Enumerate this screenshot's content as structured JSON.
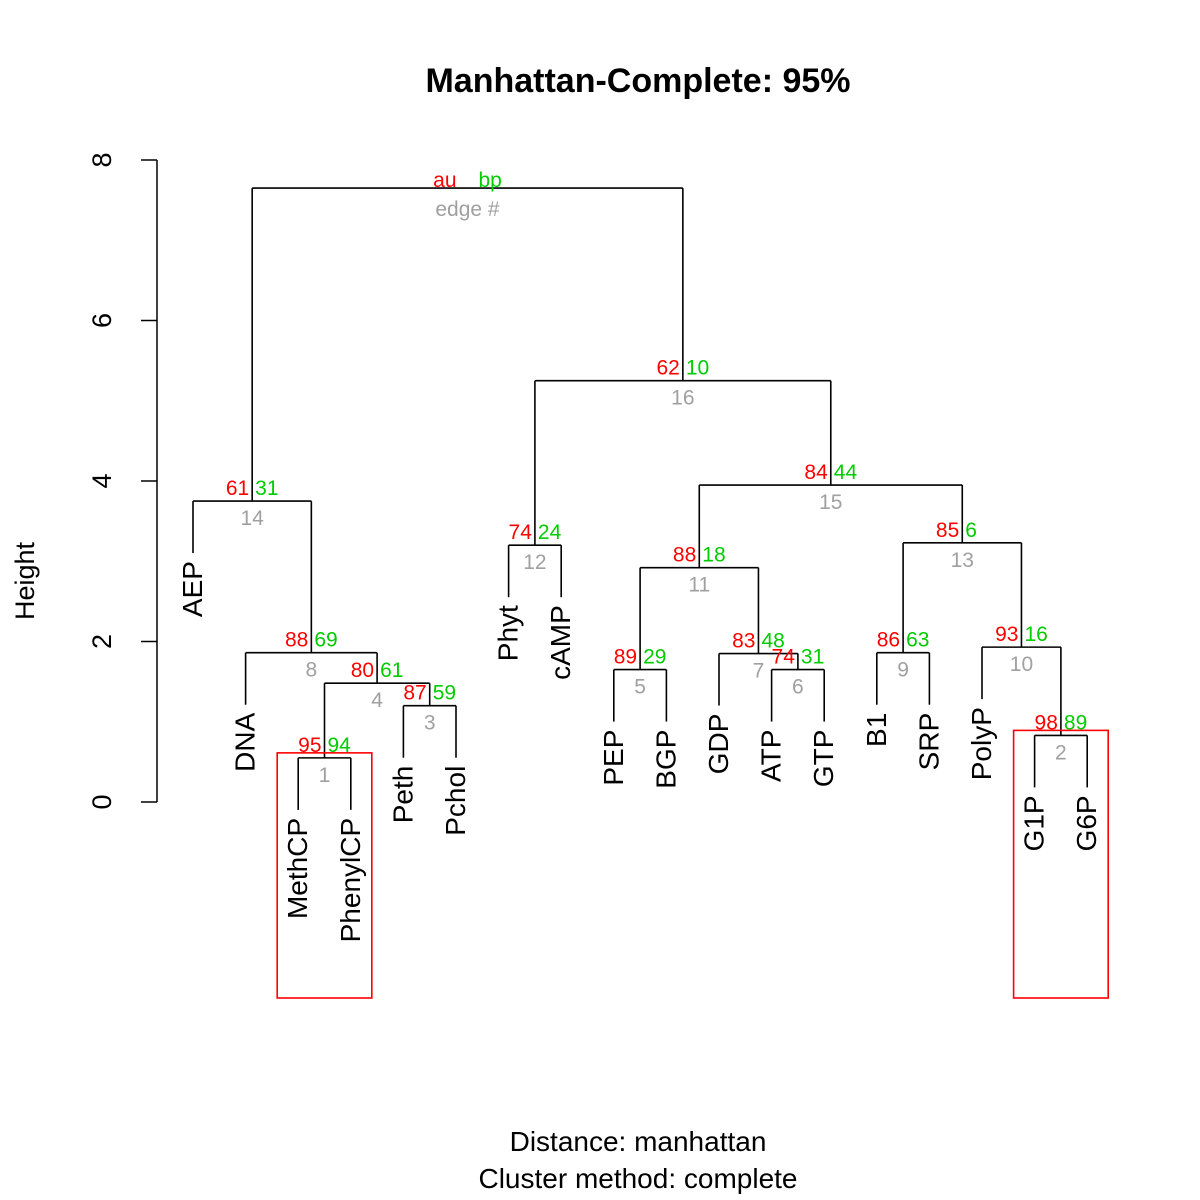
{
  "chart_data": {
    "type": "dendrogram",
    "title": "Manhattan-Complete: 95%",
    "ylabel": "Height",
    "subtitle_lines": [
      "Distance:  manhattan",
      "Cluster method: complete"
    ],
    "ylim": [
      0,
      8
    ],
    "yticks": [
      "0",
      "2",
      "4",
      "6",
      "8"
    ],
    "legend": {
      "au": "au",
      "bp": "bp",
      "edge": "edge #"
    },
    "leaves": [
      "AEP",
      "DNA",
      "MethCP",
      "PhenylCP",
      "Peth",
      "Pchol",
      "Phyt",
      "cAMP",
      "PEP",
      "BGP",
      "GDP",
      "ATP",
      "GTP",
      "B1",
      "SRP",
      "PolyP",
      "G1P",
      "G6P"
    ],
    "merges": [
      {
        "id": 1,
        "left": "MethCP",
        "right": "PhenylCP",
        "height": 0.55,
        "au": "95",
        "bp": "94",
        "edge": "1"
      },
      {
        "id": 2,
        "left": "G1P",
        "right": "G6P",
        "height": 0.83,
        "au": "98",
        "bp": "89",
        "edge": "2"
      },
      {
        "id": 3,
        "left": "Peth",
        "right": "Pchol",
        "height": 1.2,
        "au": "87",
        "bp": "59",
        "edge": "3"
      },
      {
        "id": 4,
        "left": "m1",
        "right": "m3",
        "height": 1.48,
        "au": "80",
        "bp": "61",
        "edge": "4"
      },
      {
        "id": 5,
        "left": "PEP",
        "right": "BGP",
        "height": 1.65,
        "au": "89",
        "bp": "29",
        "edge": "5"
      },
      {
        "id": 6,
        "left": "ATP",
        "right": "GTP",
        "height": 1.65,
        "au": "74",
        "bp": "31",
        "edge": "6"
      },
      {
        "id": 7,
        "left": "GDP",
        "right": "m6",
        "height": 1.85,
        "au": "83",
        "bp": "48",
        "edge": "7"
      },
      {
        "id": 8,
        "left": "DNA",
        "right": "m4",
        "height": 1.86,
        "au": "88",
        "bp": "69",
        "edge": "8"
      },
      {
        "id": 9,
        "left": "B1",
        "right": "SRP",
        "height": 1.86,
        "au": "86",
        "bp": "63",
        "edge": "9"
      },
      {
        "id": 10,
        "left": "PolyP",
        "right": "m2",
        "height": 1.93,
        "au": "93",
        "bp": "16",
        "edge": "10"
      },
      {
        "id": 11,
        "left": "m5",
        "right": "m7",
        "height": 2.92,
        "au": "88",
        "bp": "18",
        "edge": "11"
      },
      {
        "id": 12,
        "left": "Phyt",
        "right": "cAMP",
        "height": 3.2,
        "au": "74",
        "bp": "24",
        "edge": "12"
      },
      {
        "id": 13,
        "left": "m9",
        "right": "m10",
        "height": 3.23,
        "au": "85",
        "bp": "6",
        "edge": "13"
      },
      {
        "id": 14,
        "left": "AEP",
        "right": "m8",
        "height": 3.75,
        "au": "61",
        "bp": "31",
        "edge": "14"
      },
      {
        "id": 15,
        "left": "m11",
        "right": "m13",
        "height": 3.95,
        "au": "84",
        "bp": "44",
        "edge": "15"
      },
      {
        "id": 16,
        "left": "m12",
        "right": "m15",
        "height": 5.25,
        "au": "62",
        "bp": "10",
        "edge": "16"
      },
      {
        "id": 17,
        "left": "m14",
        "right": "m16",
        "height": 7.65,
        "au": "",
        "bp": "",
        "edge": ""
      }
    ],
    "highlighted_clusters": [
      1,
      2
    ],
    "colors": {
      "au": "#ff0000",
      "bp": "#00cc00",
      "edge": "#a0a0a0",
      "tree": "#000000",
      "highlight": "#ff0000"
    }
  }
}
